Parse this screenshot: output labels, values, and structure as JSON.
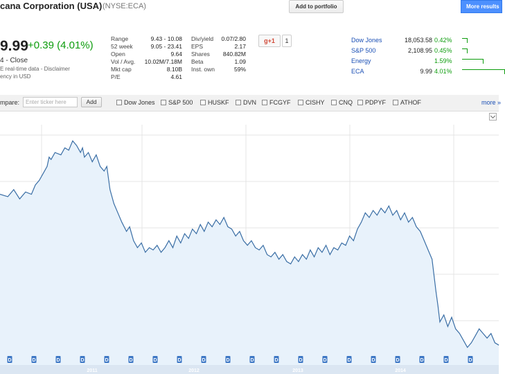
{
  "header": {
    "title": "cana Corporation (USA)",
    "exchange": "(NYSE:ECA)",
    "add_to_portfolio": "Add to portfolio",
    "more_results": "More results"
  },
  "quote": {
    "price": "9.99",
    "change": "+0.39 (4.01%)",
    "close_label": "4 - Close",
    "disclaimer": "E real-time data - Disclaimer",
    "currency": "ency in USD"
  },
  "stats_left": [
    {
      "label": "Range",
      "value": "9.43 - 10.08"
    },
    {
      "label": "52 week",
      "value": "9.05 - 23.41"
    },
    {
      "label": "Open",
      "value": "9.64"
    },
    {
      "label": "Vol / Avg.",
      "value": "10.02M/7.18M"
    },
    {
      "label": "Mkt cap",
      "value": "8.10B"
    },
    {
      "label": "P/E",
      "value": "4.61"
    }
  ],
  "stats_right": [
    {
      "label": "Div/yield",
      "value": "0.07/2.80"
    },
    {
      "label": "EPS",
      "value": "2.17"
    },
    {
      "label": "Shares",
      "value": "840.82M"
    },
    {
      "label": "Beta",
      "value": "1.09"
    },
    {
      "label": "Inst. own",
      "value": "59%"
    }
  ],
  "social": {
    "gplus_label": "+1",
    "gplus_count": "1"
  },
  "markets": [
    {
      "name": "Dow Jones",
      "value": "18,053.58",
      "change": "0.42%",
      "bar": 0.13
    },
    {
      "name": "S&P 500",
      "value": "2,108.95",
      "change": "0.45%",
      "bar": 0.13
    },
    {
      "name": "Energy",
      "value": "",
      "change": "1.59%",
      "bar": 0.5
    },
    {
      "name": "ECA",
      "value": "9.99",
      "change": "4.01%",
      "bar": 1.0
    }
  ],
  "compare": {
    "label": "mpare:",
    "input_placeholder": "Enter ticker here",
    "add_label": "Add",
    "items": [
      "Dow Jones",
      "S&P 500",
      "HUSKF",
      "DVN",
      "FCGYF",
      "CISHY",
      "CNQ",
      "PDPYF",
      "ATHOF"
    ],
    "more_label": "more »"
  },
  "chart_data": {
    "type": "area",
    "line_color": "#3a6ea5",
    "fill_color": "#e8f2fb",
    "x_labels": [
      "2011",
      "2012",
      "2013",
      "2014"
    ],
    "dividend_marker_label": "D",
    "dividend_marker_count": 20,
    "series": [
      {
        "values": [
          [
            0.0,
            0.7
          ],
          [
            0.02,
            0.69
          ],
          [
            0.035,
            0.72
          ],
          [
            0.05,
            0.68
          ],
          [
            0.065,
            0.71
          ],
          [
            0.08,
            0.7
          ],
          [
            0.09,
            0.74
          ],
          [
            0.1,
            0.76
          ],
          [
            0.11,
            0.79
          ],
          [
            0.12,
            0.82
          ],
          [
            0.125,
            0.86
          ],
          [
            0.13,
            0.85
          ],
          [
            0.14,
            0.88
          ],
          [
            0.155,
            0.87
          ],
          [
            0.165,
            0.9
          ],
          [
            0.175,
            0.89
          ],
          [
            0.185,
            0.93
          ],
          [
            0.195,
            0.91
          ],
          [
            0.205,
            0.88
          ],
          [
            0.21,
            0.9
          ],
          [
            0.215,
            0.86
          ],
          [
            0.225,
            0.88
          ],
          [
            0.235,
            0.84
          ],
          [
            0.245,
            0.87
          ],
          [
            0.255,
            0.82
          ],
          [
            0.265,
            0.8
          ],
          [
            0.272,
            0.82
          ],
          [
            0.28,
            0.72
          ],
          [
            0.29,
            0.66
          ],
          [
            0.3,
            0.62
          ],
          [
            0.31,
            0.58
          ],
          [
            0.322,
            0.54
          ],
          [
            0.33,
            0.56
          ],
          [
            0.34,
            0.5
          ],
          [
            0.35,
            0.47
          ],
          [
            0.36,
            0.49
          ],
          [
            0.37,
            0.45
          ],
          [
            0.38,
            0.47
          ],
          [
            0.39,
            0.46
          ],
          [
            0.4,
            0.48
          ],
          [
            0.41,
            0.45
          ],
          [
            0.42,
            0.47
          ],
          [
            0.43,
            0.5
          ],
          [
            0.44,
            0.47
          ],
          [
            0.45,
            0.52
          ],
          [
            0.46,
            0.49
          ],
          [
            0.47,
            0.53
          ],
          [
            0.48,
            0.51
          ],
          [
            0.49,
            0.55
          ],
          [
            0.5,
            0.53
          ],
          [
            0.51,
            0.57
          ],
          [
            0.52,
            0.54
          ],
          [
            0.53,
            0.58
          ],
          [
            0.54,
            0.56
          ],
          [
            0.55,
            0.59
          ],
          [
            0.56,
            0.57
          ],
          [
            0.57,
            0.6
          ],
          [
            0.58,
            0.56
          ],
          [
            0.59,
            0.55
          ],
          [
            0.6,
            0.52
          ],
          [
            0.61,
            0.54
          ],
          [
            0.62,
            0.5
          ],
          [
            0.63,
            0.48
          ],
          [
            0.64,
            0.5
          ],
          [
            0.65,
            0.47
          ],
          [
            0.66,
            0.46
          ],
          [
            0.67,
            0.48
          ],
          [
            0.68,
            0.44
          ],
          [
            0.69,
            0.43
          ],
          [
            0.7,
            0.45
          ],
          [
            0.71,
            0.42
          ],
          [
            0.72,
            0.44
          ],
          [
            0.73,
            0.41
          ],
          [
            0.74,
            0.4
          ],
          [
            0.75,
            0.43
          ],
          [
            0.76,
            0.41
          ],
          [
            0.77,
            0.44
          ],
          [
            0.78,
            0.42
          ],
          [
            0.79,
            0.46
          ],
          [
            0.8,
            0.43
          ],
          [
            0.81,
            0.47
          ],
          [
            0.82,
            0.45
          ],
          [
            0.83,
            0.48
          ],
          [
            0.84,
            0.44
          ],
          [
            0.85,
            0.47
          ],
          [
            0.86,
            0.46
          ],
          [
            0.87,
            0.49
          ],
          [
            0.88,
            0.48
          ],
          [
            0.89,
            0.52
          ],
          [
            0.9,
            0.5
          ],
          [
            0.91,
            0.55
          ],
          [
            0.92,
            0.58
          ],
          [
            0.93,
            0.62
          ],
          [
            0.94,
            0.6
          ],
          [
            0.95,
            0.63
          ],
          [
            0.96,
            0.61
          ],
          [
            0.97,
            0.64
          ],
          [
            0.98,
            0.62
          ],
          [
            0.99,
            0.65
          ],
          [
            1.0,
            0.61
          ],
          [
            1.01,
            0.63
          ],
          [
            1.02,
            0.59
          ],
          [
            1.03,
            0.62
          ],
          [
            1.04,
            0.58
          ],
          [
            1.05,
            0.6
          ],
          [
            1.06,
            0.56
          ],
          [
            1.07,
            0.54
          ],
          [
            1.08,
            0.5
          ],
          [
            1.09,
            0.46
          ],
          [
            1.1,
            0.42
          ],
          [
            1.11,
            0.28
          ],
          [
            1.115,
            0.22
          ],
          [
            1.12,
            0.15
          ],
          [
            1.13,
            0.18
          ],
          [
            1.14,
            0.13
          ],
          [
            1.15,
            0.17
          ],
          [
            1.16,
            0.12
          ],
          [
            1.17,
            0.1
          ],
          [
            1.18,
            0.07
          ],
          [
            1.19,
            0.04
          ],
          [
            1.2,
            0.06
          ],
          [
            1.21,
            0.09
          ],
          [
            1.22,
            0.12
          ],
          [
            1.23,
            0.1
          ],
          [
            1.24,
            0.08
          ],
          [
            1.25,
            0.1
          ],
          [
            1.26,
            0.06
          ],
          [
            1.27,
            0.05
          ]
        ]
      }
    ]
  }
}
